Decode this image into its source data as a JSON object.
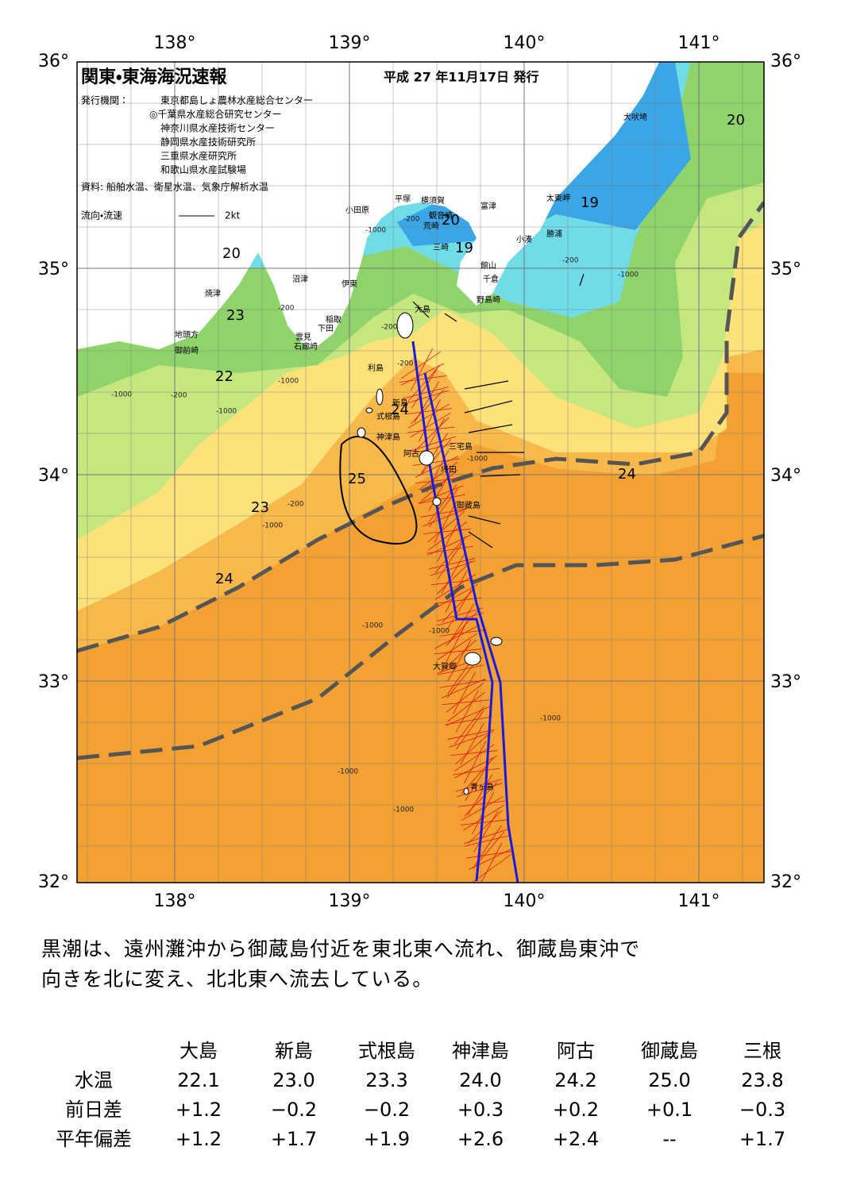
{
  "header": {
    "title": "関東・東海海況速報",
    "date": "平成 27 年11月17日 発行",
    "publisher_label": "発行機関：",
    "publishers": [
      "東京都島しょ農林水産総合センター",
      "◎千葉県水産総合研究センター",
      "神奈川県水産技術センター",
      "静岡県水産技術研究所",
      "三重県水産研究所",
      "和歌山県水産試験場"
    ],
    "source": "資料: 船舶水温、衛星水温、気象庁解析水温",
    "flow_label": "流向・流速",
    "flow_scale": "2kt"
  },
  "map": {
    "lon_labels": [
      "138°",
      "139°",
      "140°",
      "141°"
    ],
    "lat_labels": [
      "36°",
      "35°",
      "34°",
      "33°",
      "32°"
    ],
    "places": [
      "犬吠埼",
      "太東岬",
      "勝浦",
      "小湊",
      "館山",
      "千倉",
      "野島崎",
      "富津",
      "横須賀",
      "観音崎",
      "荒崎",
      "三崎",
      "平塚",
      "小田原",
      "沼津",
      "伊東",
      "焼津",
      "稲取",
      "下田",
      "雲見",
      "石廊崎",
      "地頭方",
      "御前崎",
      "大島",
      "利島",
      "新島",
      "式根島",
      "神津島",
      "三宅島",
      "阿古",
      "坪田",
      "御蔵島",
      "大賀郷",
      "青ヶ島"
    ],
    "temperature_labels": [
      "20",
      "23",
      "22",
      "25",
      "23",
      "24",
      "24",
      "20",
      "19",
      "19",
      "20",
      "24"
    ],
    "depth_labels": [
      "-200",
      "-200",
      "-200",
      "-200",
      "-200",
      "-200",
      "-200",
      "-1000",
      "-1000",
      "-1000",
      "-1000",
      "-1000",
      "-1000",
      "-1000",
      "-1000",
      "-1000",
      "-1000",
      "-1000",
      "-1000"
    ]
  },
  "summary": [
    "黒潮は、遠州灘沖から御蔵島付近を東北東へ流れ、御蔵島東沖で",
    "向きを北に変え、北北東へ流去している。"
  ],
  "table": {
    "columns": [
      "大島",
      "新島",
      "式根島",
      "神津島",
      "阿古",
      "御蔵島",
      "三根"
    ],
    "rows": [
      {
        "label": "水温",
        "cells": [
          "22.1",
          "23.0",
          "23.3",
          "24.0",
          "24.2",
          "25.0",
          "23.8"
        ]
      },
      {
        "label": "前日差",
        "cells": [
          "+1.2",
          "−0.2",
          "−0.2",
          "+0.3",
          "+0.2",
          "+0.1",
          "−0.3"
        ]
      },
      {
        "label": "平年偏差",
        "cells": [
          "+1.2",
          "+1.7",
          "+1.9",
          "+2.6",
          "+2.4",
          "--",
          "+1.7"
        ]
      }
    ]
  }
}
